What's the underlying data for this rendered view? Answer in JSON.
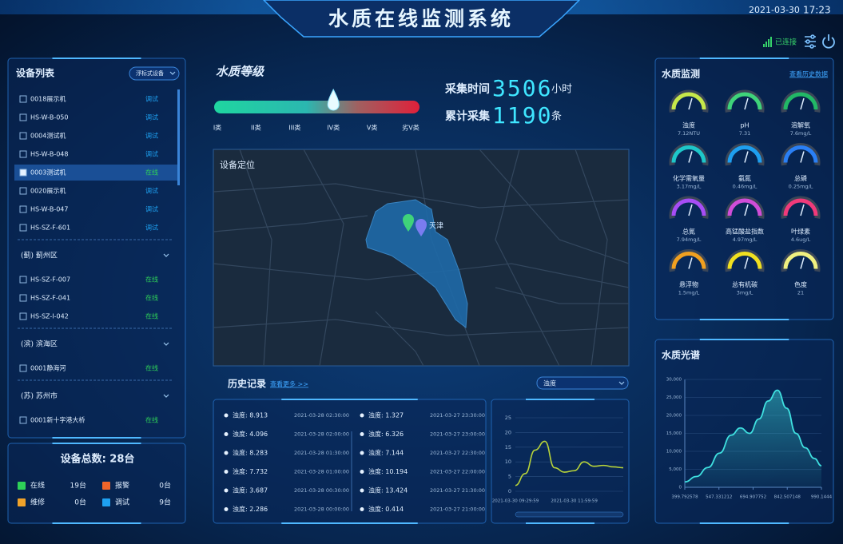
{
  "header": {
    "title": "水质在线监测系统",
    "date": "2021-03-30",
    "time": "17:23",
    "status": "已连接"
  },
  "device_list": {
    "title": "设备列表",
    "filter": "浮标式设备",
    "devices": [
      {
        "name": "0018展示机",
        "status": "调试",
        "checked": false
      },
      {
        "name": "HS-W-B-050",
        "status": "调试",
        "checked": false
      },
      {
        "name": "0004测试机",
        "status": "调试",
        "checked": false
      },
      {
        "name": "HS-W-B-048",
        "status": "调试",
        "checked": false
      },
      {
        "name": "0003测试机",
        "status": "在线",
        "checked": true
      },
      {
        "name": "0020展示机",
        "status": "调试",
        "checked": false
      },
      {
        "name": "HS-W-B-047",
        "status": "调试",
        "checked": false
      },
      {
        "name": "HS-SZ-F-601",
        "status": "调试",
        "checked": false
      }
    ],
    "groups": [
      {
        "name": "(蓟) 蓟州区",
        "devices": [
          {
            "name": "HS-SZ-F-007",
            "status": "在线",
            "checked": false
          },
          {
            "name": "HS-SZ-F-041",
            "status": "在线",
            "checked": false
          },
          {
            "name": "HS-SZ-I-042",
            "status": "在线",
            "checked": false
          }
        ]
      },
      {
        "name": "(滨) 滨海区",
        "devices": [
          {
            "name": "0001静海河",
            "status": "在线",
            "checked": false
          }
        ]
      },
      {
        "name": "(苏) 苏州市",
        "devices": [
          {
            "name": "0001新十字港大桥",
            "status": "在线",
            "checked": false
          }
        ]
      }
    ]
  },
  "summary": {
    "title": "设备总数: 28台",
    "legend": [
      {
        "name": "在线",
        "count": "19台",
        "color": "#2ed158"
      },
      {
        "name": "报警",
        "count": "0台",
        "color": "#f0652a"
      },
      {
        "name": "维修",
        "count": "0台",
        "color": "#f0a22a"
      },
      {
        "name": "调试",
        "count": "9台",
        "color": "#1ea0f0"
      }
    ]
  },
  "water_grade": {
    "title": "水质等级",
    "levels": [
      "I类",
      "II类",
      "III类",
      "IV类",
      "V类",
      "劣V类"
    ],
    "current": 3
  },
  "stats": [
    {
      "label": "采集时间",
      "value": 3506,
      "unit": "小时"
    },
    {
      "label": "累计采集",
      "value": 1190,
      "unit": "条"
    }
  ],
  "map": {
    "title": "设备定位",
    "city": "天津"
  },
  "history": {
    "title": "历史记录",
    "more": "查看更多 >>",
    "parameter": "浊度",
    "records": [
      [
        {
          "reading": "浊度: 8.913",
          "time": "2021-03-28 02:30:00"
        },
        {
          "reading": "浊度: 4.096",
          "time": "2021-03-28 02:00:00"
        },
        {
          "reading": "浊度: 8.283",
          "time": "2021-03-28 01:30:00"
        },
        {
          "reading": "浊度: 7.732",
          "time": "2021-03-28 01:00:00"
        },
        {
          "reading": "浊度: 3.687",
          "time": "2021-03-28 00:30:00"
        },
        {
          "reading": "浊度: 2.286",
          "time": "2021-03-28 00:00:00"
        }
      ],
      [
        {
          "reading": "浊度: 1.327",
          "time": "2021-03-27 23:30:00"
        },
        {
          "reading": "浊度: 6.326",
          "time": "2021-03-27 23:00:00"
        },
        {
          "reading": "浊度: 7.144",
          "time": "2021-03-27 22:30:00"
        },
        {
          "reading": "浊度: 10.194",
          "time": "2021-03-27 22:00:00"
        },
        {
          "reading": "浊度: 13.424",
          "time": "2021-03-27 21:30:00"
        },
        {
          "reading": "浊度: 0.414",
          "time": "2021-03-27 21:00:00"
        }
      ]
    ]
  },
  "trend_chart": {
    "type": "line",
    "categories": [
      "2021-03-30 09:29:59",
      null,
      null,
      null,
      null,
      null,
      "2021-03-30 11:59:59",
      null,
      null,
      null,
      null,
      null
    ],
    "values": [
      2,
      6,
      14,
      17,
      8,
      6.5,
      7,
      10,
      8.5,
      8.8,
      8.3,
      8
    ],
    "color": "#b8d43a",
    "ylim": [
      0,
      25
    ],
    "yticks": [
      0,
      5,
      10,
      15,
      20,
      25
    ],
    "grid": true
  },
  "monitor": {
    "title": "水质监测",
    "more": "查看历史数据",
    "gauges": [
      {
        "name": "浊度",
        "reading": "7.12NTU",
        "color": "#c6e84a"
      },
      {
        "name": "pH",
        "reading": "7.31",
        "color": "#3fd37a"
      },
      {
        "name": "溶解氧",
        "reading": "7.6mg/L",
        "color": "#22b866"
      },
      {
        "name": "化学需氧量",
        "reading": "3.17mg/L",
        "color": "#1ec7c9"
      },
      {
        "name": "氨氮",
        "reading": "0.46mg/L",
        "color": "#1e9ff0"
      },
      {
        "name": "总磷",
        "reading": "0.25mg/L",
        "color": "#2a7ff5"
      },
      {
        "name": "总氮",
        "reading": "7.94mg/L",
        "color": "#a74df5"
      },
      {
        "name": "高锰酸盐指数",
        "reading": "4.97mg/L",
        "color": "#d04dd8"
      },
      {
        "name": "叶绿素",
        "reading": "4.6ug/L",
        "color": "#f03a7a"
      },
      {
        "name": "悬浮物",
        "reading": "1.5mg/L",
        "color": "#f0a020"
      },
      {
        "name": "总有机碳",
        "reading": "3mg/L",
        "color": "#f0e020"
      },
      {
        "name": "色度",
        "reading": "21",
        "color": "#f0f080"
      }
    ]
  },
  "spectrum": {
    "title": "水质光谱",
    "chart_data": {
      "type": "line",
      "x": [
        400,
        450,
        500,
        550,
        600,
        640,
        680,
        720,
        760,
        800,
        840,
        880,
        920,
        960,
        990
      ],
      "values": [
        1500,
        3000,
        5500,
        9500,
        14500,
        16500,
        15000,
        19000,
        24000,
        27000,
        22000,
        15000,
        11000,
        8000,
        6000
      ],
      "color": "#3fe0e0",
      "xlim": [
        399.792578,
        990.1444
      ],
      "xticks": [
        399.792578,
        547.331212,
        694.907752,
        842.507148,
        990.1444
      ],
      "ylim": [
        0,
        30000
      ],
      "yticks": [
        0,
        {
          "value": 5000,
          "label": "5,000"
        },
        {
          "value": 10000,
          "label": "10,000"
        },
        {
          "value": 15000,
          "label": "15,000"
        },
        {
          "value": 20000,
          "label": "20,000"
        },
        {
          "value": 25000,
          "label": "25,000"
        },
        {
          "value": 30000,
          "label": "30,000"
        }
      ],
      "grid": true
    }
  }
}
